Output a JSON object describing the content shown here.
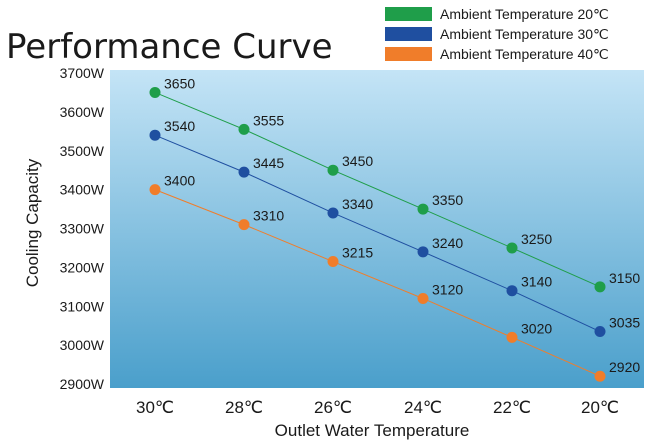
{
  "chart_data": {
    "type": "line",
    "title": "Performance Curve",
    "xlabel": "Outlet Water Temperature",
    "ylabel": "Cooling Capacity",
    "categories": [
      "30℃",
      "28℃",
      "26℃",
      "24℃",
      "22℃",
      "20℃"
    ],
    "y_ticks": [
      "2900W",
      "3000W",
      "3100W",
      "3200W",
      "3300W",
      "3400W",
      "3500W",
      "3600W",
      "3700W"
    ],
    "ylim": [
      2900,
      3700
    ],
    "grid": false,
    "legend_position": "top-right",
    "series": [
      {
        "name": "Ambient Temperature 20℃",
        "color": "#1f9e4a",
        "values": [
          3650,
          3555,
          3450,
          3350,
          3250,
          3150
        ]
      },
      {
        "name": "Ambient Temperature 30℃",
        "color": "#1f4fa0",
        "values": [
          3540,
          3445,
          3340,
          3240,
          3140,
          3035
        ]
      },
      {
        "name": "Ambient Temperature 40℃",
        "color": "#f07d2a",
        "values": [
          3400,
          3310,
          3215,
          3120,
          3020,
          2920
        ]
      }
    ]
  }
}
